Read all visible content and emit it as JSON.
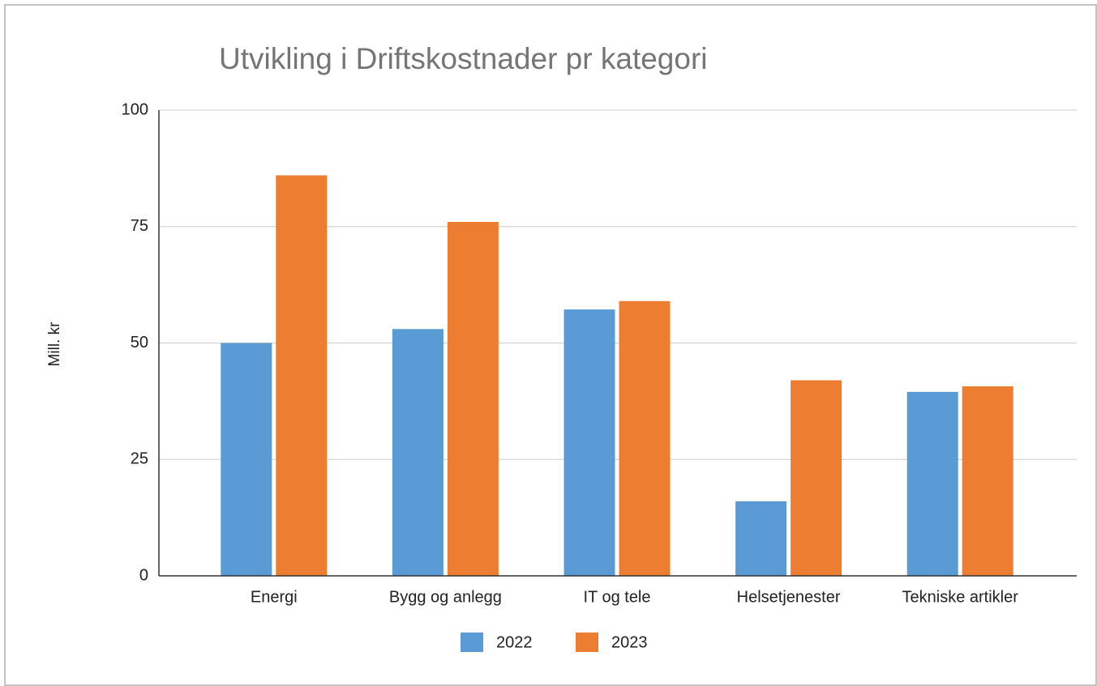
{
  "chart_data": {
    "type": "bar",
    "title": "Utvikling i Driftskostnader pr kategori",
    "y_label": "Mill. kr",
    "categories": [
      "Energi",
      "Bygg og anlegg",
      "IT og tele",
      "Helsetjenester",
      "Tekniske artikler"
    ],
    "series": [
      {
        "name": "2022",
        "color": "#5b9bd5",
        "values": [
          50,
          53,
          57.2,
          16,
          39.5
        ]
      },
      {
        "name": "2023",
        "color": "#ed7d31",
        "values": [
          86,
          76,
          59,
          42,
          40.7
        ]
      }
    ],
    "ylim": [
      0,
      100
    ],
    "yticks": [
      0,
      25,
      50,
      75,
      100
    ],
    "grid": true,
    "legend": "bottom"
  }
}
